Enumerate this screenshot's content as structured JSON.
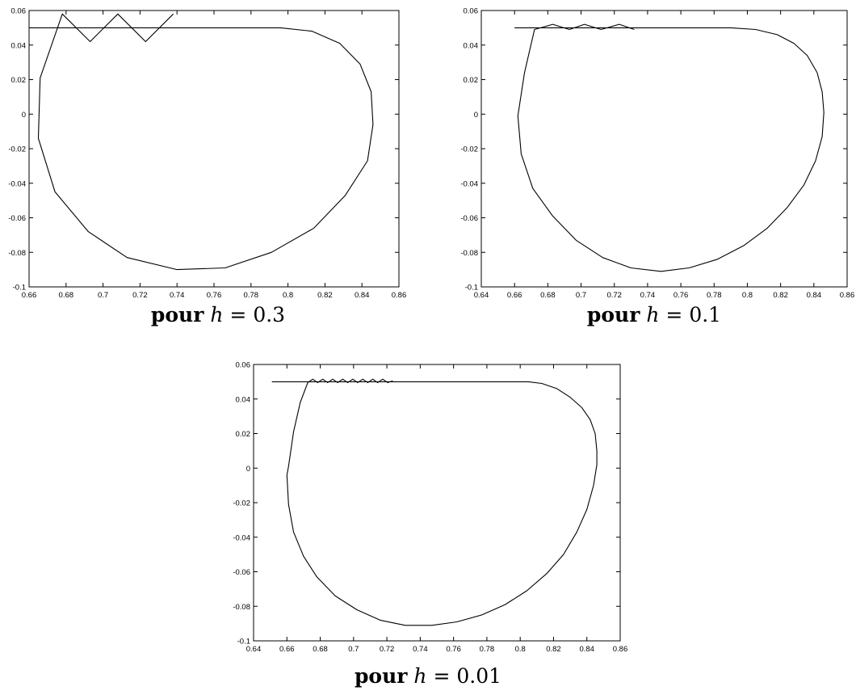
{
  "chart_data": [
    {
      "type": "line",
      "caption": {
        "prefix": "pour",
        "variable": "h",
        "equals": "=",
        "value": "0.3"
      },
      "xlim": [
        0.66,
        0.86
      ],
      "ylim": [
        -0.1,
        0.06
      ],
      "xticks": [
        0.66,
        0.68,
        0.7,
        0.72,
        0.74,
        0.76,
        0.78,
        0.8,
        0.82,
        0.84,
        0.86
      ],
      "yticks": [
        -0.1,
        -0.08,
        -0.06,
        -0.04,
        -0.02,
        0,
        0.02,
        0.04,
        0.06
      ],
      "xtick_labels": [
        "0.66",
        "0.68",
        "0.7",
        "0.72",
        "0.74",
        "0.76",
        "0.78",
        "0.8",
        "0.82",
        "0.84",
        "0.86"
      ],
      "ytick_labels": [
        "-0.1",
        "-0.08",
        "-0.06",
        "-0.04",
        "-0.02",
        "0",
        "0.02",
        "0.04",
        "0.06"
      ],
      "series": [
        {
          "x": [
            0.738,
            0.723,
            0.708,
            0.693,
            0.678,
            0.666,
            0.665,
            0.674,
            0.692,
            0.713,
            0.74,
            0.766,
            0.791,
            0.814,
            0.831,
            0.843,
            0.846,
            0.845,
            0.839,
            0.828,
            0.813,
            0.796,
            0.775,
            0.75,
            0.72,
            0.69,
            0.66
          ],
          "y": [
            0.058,
            0.042,
            0.058,
            0.042,
            0.058,
            0.021,
            -0.014,
            -0.045,
            -0.068,
            -0.083,
            -0.09,
            -0.089,
            -0.08,
            -0.066,
            -0.047,
            -0.027,
            -0.006,
            0.013,
            0.029,
            0.041,
            0.048,
            0.05,
            0.05,
            0.05,
            0.05,
            0.05,
            0.05
          ]
        }
      ]
    },
    {
      "type": "line",
      "caption": {
        "prefix": "pour",
        "variable": "h",
        "equals": "=",
        "value": "0.1"
      },
      "xlim": [
        0.64,
        0.86
      ],
      "ylim": [
        -0.1,
        0.06
      ],
      "xticks": [
        0.64,
        0.66,
        0.68,
        0.7,
        0.72,
        0.74,
        0.76,
        0.78,
        0.8,
        0.82,
        0.84,
        0.86
      ],
      "yticks": [
        -0.1,
        -0.08,
        -0.06,
        -0.04,
        -0.02,
        0,
        0.02,
        0.04,
        0.06
      ],
      "xtick_labels": [
        "0.64",
        "0.66",
        "0.68",
        "0.7",
        "0.72",
        "0.74",
        "0.76",
        "0.78",
        "0.8",
        "0.82",
        "0.84",
        "0.86"
      ],
      "ytick_labels": [
        "-0.1",
        "-0.08",
        "-0.06",
        "-0.04",
        "-0.02",
        "0",
        "0.02",
        "0.04",
        "0.06"
      ],
      "series": [
        {
          "x": [
            0.732,
            0.723,
            0.712,
            0.702,
            0.693,
            0.683,
            0.672,
            0.666,
            0.662,
            0.664,
            0.671,
            0.683,
            0.697,
            0.713,
            0.73,
            0.748,
            0.765,
            0.782,
            0.798,
            0.812,
            0.824,
            0.834,
            0.841,
            0.845,
            0.846,
            0.845,
            0.842,
            0.836,
            0.828,
            0.818,
            0.805,
            0.79,
            0.775,
            0.76,
            0.74,
            0.72,
            0.7,
            0.68,
            0.66
          ],
          "y": [
            0.049,
            0.052,
            0.049,
            0.052,
            0.049,
            0.052,
            0.049,
            0.024,
            -0.001,
            -0.023,
            -0.043,
            -0.059,
            -0.073,
            -0.083,
            -0.089,
            -0.091,
            -0.089,
            -0.084,
            -0.076,
            -0.066,
            -0.054,
            -0.041,
            -0.027,
            -0.013,
            0.001,
            0.013,
            0.024,
            0.034,
            0.041,
            0.046,
            0.049,
            0.05,
            0.05,
            0.05,
            0.05,
            0.05,
            0.05,
            0.05,
            0.05
          ]
        }
      ]
    },
    {
      "type": "line",
      "caption": {
        "prefix": "pour",
        "variable": "h",
        "equals": "=",
        "value": "0.01"
      },
      "xlim": [
        0.64,
        0.86
      ],
      "ylim": [
        -0.1,
        0.06
      ],
      "xticks": [
        0.64,
        0.66,
        0.68,
        0.7,
        0.72,
        0.74,
        0.76,
        0.78,
        0.8,
        0.82,
        0.84,
        0.86
      ],
      "yticks": [
        -0.1,
        -0.08,
        -0.06,
        -0.04,
        -0.02,
        0,
        0.02,
        0.04,
        0.06
      ],
      "xtick_labels": [
        "0.64",
        "0.66",
        "0.68",
        "0.7",
        "0.72",
        "0.74",
        "0.76",
        "0.78",
        "0.8",
        "0.82",
        "0.84",
        "0.86"
      ],
      "ytick_labels": [
        "-0.1",
        "-0.08",
        "-0.06",
        "-0.04",
        "-0.02",
        "0",
        "0.02",
        "0.04",
        "0.06"
      ],
      "series": [
        {
          "x": [
            0.7235,
            0.7205,
            0.7175,
            0.7145,
            0.7115,
            0.7085,
            0.7055,
            0.7025,
            0.6995,
            0.6965,
            0.6935,
            0.6905,
            0.6875,
            0.6845,
            0.6815,
            0.6785,
            0.6755,
            0.6725,
            0.668,
            0.664,
            0.661,
            0.66,
            0.661,
            0.664,
            0.67,
            0.678,
            0.689,
            0.702,
            0.716,
            0.731,
            0.747,
            0.762,
            0.777,
            0.791,
            0.804,
            0.816,
            0.826,
            0.834,
            0.84,
            0.844,
            0.846,
            0.846,
            0.845,
            0.842,
            0.837,
            0.83,
            0.822,
            0.813,
            0.805,
            0.8,
            0.78,
            0.76,
            0.74,
            0.72,
            0.7,
            0.68,
            0.66,
            0.651
          ],
          "y": [
            0.0505,
            0.0495,
            0.0515,
            0.0495,
            0.0515,
            0.0495,
            0.0515,
            0.0495,
            0.0515,
            0.0495,
            0.0515,
            0.0495,
            0.0515,
            0.0495,
            0.0515,
            0.0495,
            0.0515,
            0.0495,
            0.038,
            0.021,
            0.001,
            -0.004,
            -0.021,
            -0.037,
            -0.051,
            -0.063,
            -0.074,
            -0.082,
            -0.088,
            -0.091,
            -0.091,
            -0.089,
            -0.085,
            -0.079,
            -0.071,
            -0.061,
            -0.05,
            -0.037,
            -0.024,
            -0.01,
            0.002,
            0.01,
            0.02,
            0.028,
            0.035,
            0.041,
            0.046,
            0.049,
            0.05,
            0.05,
            0.05,
            0.05,
            0.05,
            0.05,
            0.05,
            0.05,
            0.05,
            0.05
          ]
        }
      ]
    }
  ]
}
